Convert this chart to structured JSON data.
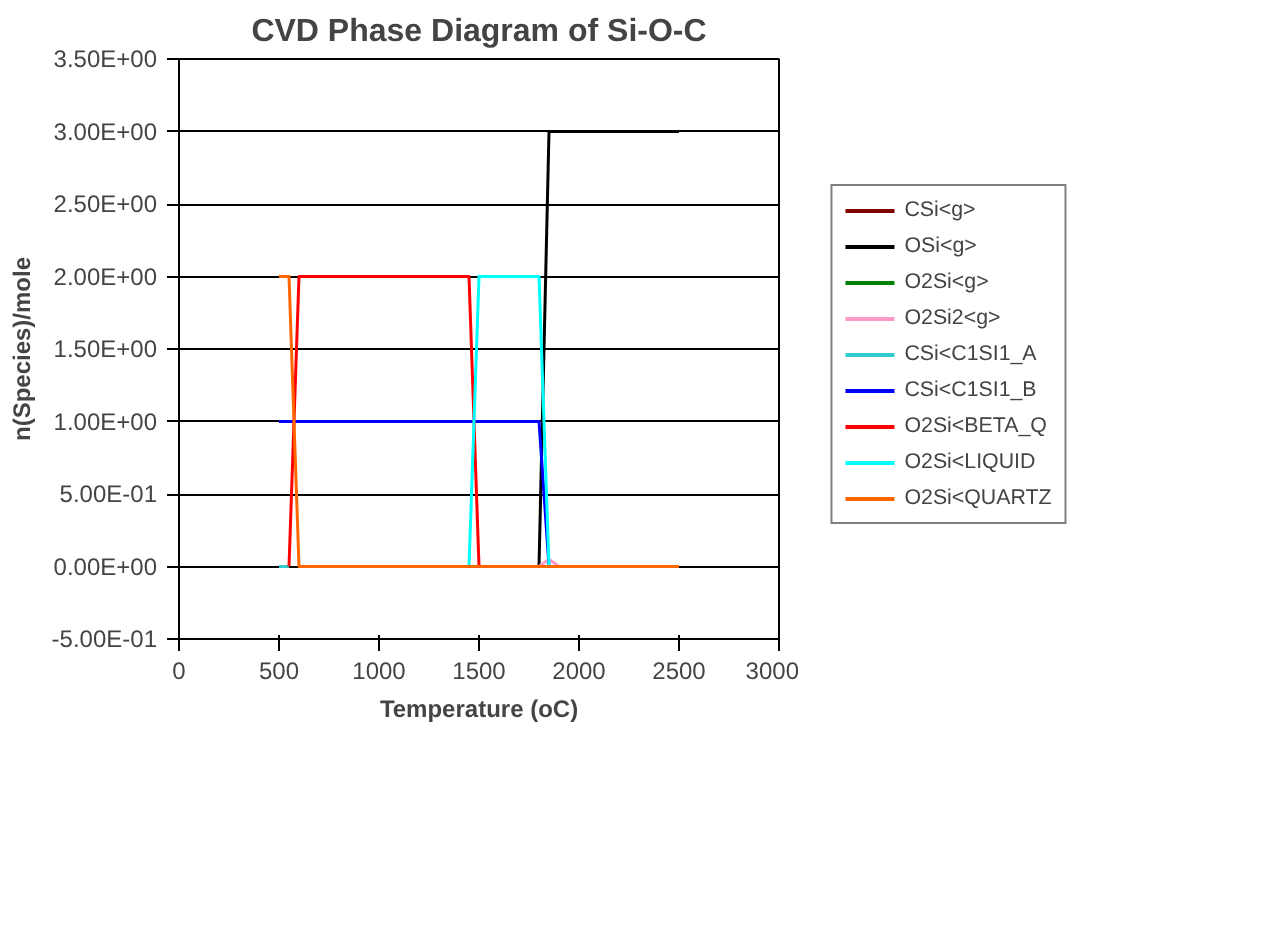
{
  "chart_data": {
    "type": "line",
    "title": "CVD Phase Diagram of Si-O-C",
    "xlabel": "Temperature (oC)",
    "ylabel": "n(Species)/mole",
    "x": [
      500,
      550,
      600,
      650,
      700,
      750,
      800,
      850,
      900,
      950,
      1000,
      1050,
      1100,
      1150,
      1200,
      1250,
      1300,
      1350,
      1400,
      1450,
      1500,
      1550,
      1600,
      1650,
      1700,
      1750,
      1800,
      1850,
      1900,
      1950,
      2000,
      2050,
      2100,
      2150,
      2200,
      2250,
      2300,
      2350,
      2400,
      2450,
      2500
    ],
    "series": [
      {
        "name": "CSi<g>",
        "color": "#800000",
        "values": [
          null,
          null,
          null,
          null,
          null,
          null,
          null,
          null,
          null,
          null,
          null,
          null,
          null,
          null,
          null,
          null,
          null,
          null,
          null,
          null,
          null,
          null,
          null,
          null,
          null,
          null,
          null,
          null,
          null,
          null,
          null,
          null,
          null,
          null,
          null,
          null,
          null,
          null,
          null,
          null,
          null
        ]
      },
      {
        "name": "OSi<g>",
        "color": "#000000",
        "values": [
          null,
          null,
          null,
          null,
          null,
          null,
          null,
          null,
          null,
          null,
          null,
          null,
          null,
          null,
          null,
          null,
          null,
          null,
          null,
          null,
          null,
          null,
          null,
          null,
          null,
          null,
          0,
          3,
          3,
          3,
          3,
          3,
          3,
          3,
          3,
          3,
          3,
          3,
          3,
          3,
          3
        ]
      },
      {
        "name": "O2Si<g>",
        "color": "#008000",
        "values": [
          null,
          null,
          null,
          null,
          null,
          null,
          null,
          null,
          null,
          null,
          null,
          null,
          null,
          null,
          null,
          null,
          null,
          null,
          null,
          null,
          null,
          null,
          null,
          null,
          null,
          null,
          null,
          null,
          null,
          null,
          null,
          null,
          null,
          null,
          null,
          null,
          null,
          null,
          null,
          null,
          null
        ]
      },
      {
        "name": "O2Si2<g>",
        "color": "#ff99cc",
        "values": [
          null,
          null,
          null,
          null,
          null,
          null,
          null,
          null,
          null,
          null,
          null,
          null,
          null,
          null,
          null,
          null,
          null,
          null,
          null,
          null,
          null,
          null,
          null,
          null,
          null,
          null,
          0,
          0.05,
          0,
          null,
          null,
          null,
          null,
          null,
          null,
          null,
          null,
          null,
          null,
          null,
          null
        ]
      },
      {
        "name": "CSi<C1SI1_A",
        "color": "#33cccc",
        "values": [
          0,
          0,
          null,
          null,
          null,
          null,
          null,
          null,
          null,
          null,
          null,
          null,
          null,
          null,
          null,
          null,
          null,
          null,
          null,
          null,
          null,
          null,
          null,
          null,
          null,
          null,
          null,
          null,
          null,
          null,
          null,
          null,
          null,
          null,
          null,
          null,
          null,
          null,
          null,
          null,
          null
        ]
      },
      {
        "name": "CSi<C1SI1_B",
        "color": "#0000ff",
        "values": [
          1,
          1,
          1,
          1,
          1,
          1,
          1,
          1,
          1,
          1,
          1,
          1,
          1,
          1,
          1,
          1,
          1,
          1,
          1,
          1,
          1,
          1,
          1,
          1,
          1,
          1,
          1,
          0,
          null,
          null,
          null,
          null,
          null,
          null,
          null,
          null,
          null,
          null,
          null,
          null,
          null
        ]
      },
      {
        "name": "O2Si<BETA_Q",
        "color": "#ff0000",
        "values": [
          null,
          0,
          2,
          2,
          2,
          2,
          2,
          2,
          2,
          2,
          2,
          2,
          2,
          2,
          2,
          2,
          2,
          2,
          2,
          2,
          0,
          null,
          null,
          null,
          null,
          null,
          null,
          null,
          null,
          null,
          null,
          null,
          null,
          null,
          null,
          null,
          null,
          null,
          null,
          null,
          null
        ]
      },
      {
        "name": "O2Si<LIQUID",
        "color": "#00ffff",
        "values": [
          null,
          null,
          null,
          null,
          null,
          null,
          null,
          null,
          null,
          null,
          null,
          null,
          null,
          null,
          null,
          null,
          null,
          null,
          null,
          0,
          2,
          2,
          2,
          2,
          2,
          2,
          2,
          0,
          null,
          null,
          null,
          null,
          null,
          null,
          null,
          null,
          null,
          null,
          null,
          null,
          null
        ]
      },
      {
        "name": "O2Si<QUARTZ",
        "color": "#ff6600",
        "values": [
          2,
          2,
          0,
          0,
          0,
          0,
          0,
          0,
          0,
          0,
          0,
          0,
          0,
          0,
          0,
          0,
          0,
          0,
          0,
          0,
          0,
          0,
          0,
          0,
          0,
          0,
          0,
          0,
          0,
          0,
          0,
          0,
          0,
          0,
          0,
          0,
          0,
          0,
          0,
          0,
          0
        ]
      }
    ],
    "xlim": [
      0,
      3000
    ],
    "xticks": [
      0,
      500,
      1000,
      1500,
      2000,
      2500,
      3000
    ],
    "ylim": [
      -0.5,
      3.5
    ],
    "yticks": [
      {
        "value": -0.5,
        "label": "-5.00E-01"
      },
      {
        "value": 0,
        "label": "0.00E+00"
      },
      {
        "value": 0.5,
        "label": "5.00E-01"
      },
      {
        "value": 1,
        "label": "1.00E+00"
      },
      {
        "value": 1.5,
        "label": "1.50E+00"
      },
      {
        "value": 2,
        "label": "2.00E+00"
      },
      {
        "value": 2.5,
        "label": "2.50E+00"
      },
      {
        "value": 3,
        "label": "3.00E+00"
      },
      {
        "value": 3.5,
        "label": "3.50E+00"
      }
    ],
    "grid": "y",
    "legend": "right",
    "marker": "none",
    "line_style": "solid"
  }
}
